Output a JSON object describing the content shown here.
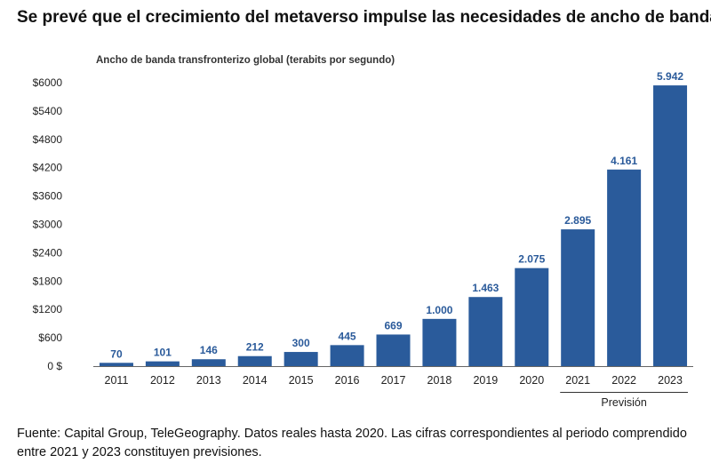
{
  "title": "Se prevé que el crecimiento del metaverso impulse las necesidades de ancho de banda",
  "footnote": "Fuente: Capital Group, TeleGeography. Datos reales hasta 2020. Las cifras correspondientes al periodo comprendido entre 2021 y 2023 constituyen previsiones.",
  "colors": {
    "bar": "#2a5b9b",
    "data_label": "#2a5a9a",
    "axis": "#666666"
  },
  "chart_data": {
    "type": "bar",
    "title": "",
    "subtitle": "Ancho de banda transfronterizo global (terabits por segundo)",
    "categories": [
      "2011",
      "2012",
      "2013",
      "2014",
      "2015",
      "2016",
      "2017",
      "2018",
      "2019",
      "2020",
      "2021",
      "2022",
      "2023"
    ],
    "values": [
      70,
      101,
      146,
      212,
      300,
      445,
      669,
      1000,
      1463,
      2075,
      2895,
      4161,
      5942
    ],
    "value_labels": [
      "70",
      "101",
      "146",
      "212",
      "300",
      "445",
      "669",
      "1.000",
      "1.463",
      "2.075",
      "2.895",
      "4.161",
      "5.942"
    ],
    "ylim": [
      0,
      6000
    ],
    "yticks": [
      0,
      600,
      1200,
      1800,
      2400,
      3000,
      3600,
      4200,
      4800,
      5400,
      6000
    ],
    "ytick_labels": [
      "0 $",
      "$600",
      "$1200",
      "$1800",
      "$2400",
      "$3000",
      "$3600",
      "$4200",
      "$4800",
      "$5400",
      "$6000"
    ],
    "forecast_label": "Previsión",
    "forecast_categories": [
      "2021",
      "2022",
      "2023"
    ],
    "grid": false,
    "legend": "none"
  }
}
